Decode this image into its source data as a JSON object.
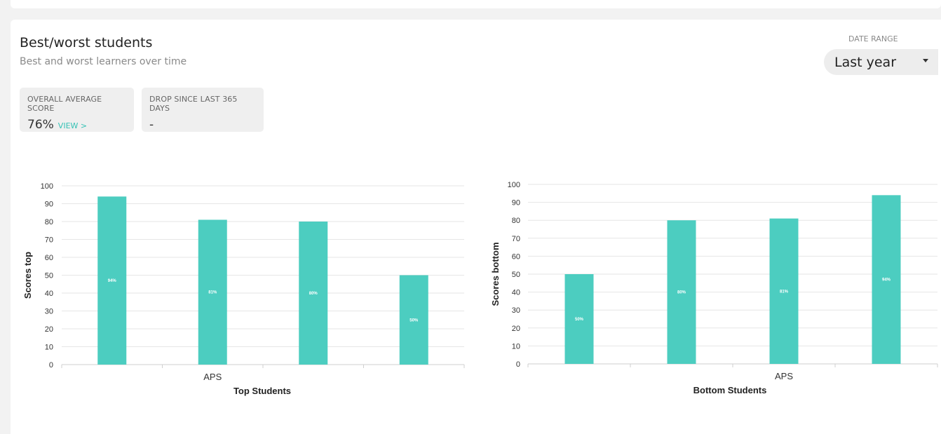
{
  "card": {
    "title": "Best/worst students",
    "subtitle": "Best and worst learners over time"
  },
  "date_range": {
    "label": "DATE RANGE",
    "selected": "Last year"
  },
  "stats": {
    "average": {
      "label": "OVERALL AVERAGE SCORE",
      "value": "76%",
      "link": "VIEW >"
    },
    "drop": {
      "label": "DROP SINCE LAST 365 DAYS",
      "value": "-"
    }
  },
  "colors": {
    "bar": "#4ccdc0",
    "accent": "#35c2b5",
    "grid": "#e6e6e6"
  },
  "chart_data": [
    {
      "type": "bar",
      "title": "",
      "xlabel": "Top Students",
      "ylabel": "Scores top",
      "ylim": [
        0,
        100
      ],
      "yticks": [
        0,
        10,
        20,
        30,
        40,
        50,
        60,
        70,
        80,
        90,
        100
      ],
      "categories": [
        "",
        "APS",
        "",
        ""
      ],
      "values": [
        94,
        81,
        80,
        50
      ],
      "data_labels": [
        "94%",
        "81%",
        "80%",
        "50%"
      ]
    },
    {
      "type": "bar",
      "title": "",
      "xlabel": "Bottom Students",
      "ylabel": "Scores bottom",
      "ylim": [
        0,
        100
      ],
      "yticks": [
        0,
        10,
        20,
        30,
        40,
        50,
        60,
        70,
        80,
        90,
        100
      ],
      "categories": [
        "",
        "",
        "APS",
        ""
      ],
      "values": [
        50,
        80,
        81,
        94
      ],
      "data_labels": [
        "50%",
        "80%",
        "81%",
        "94%"
      ]
    }
  ]
}
